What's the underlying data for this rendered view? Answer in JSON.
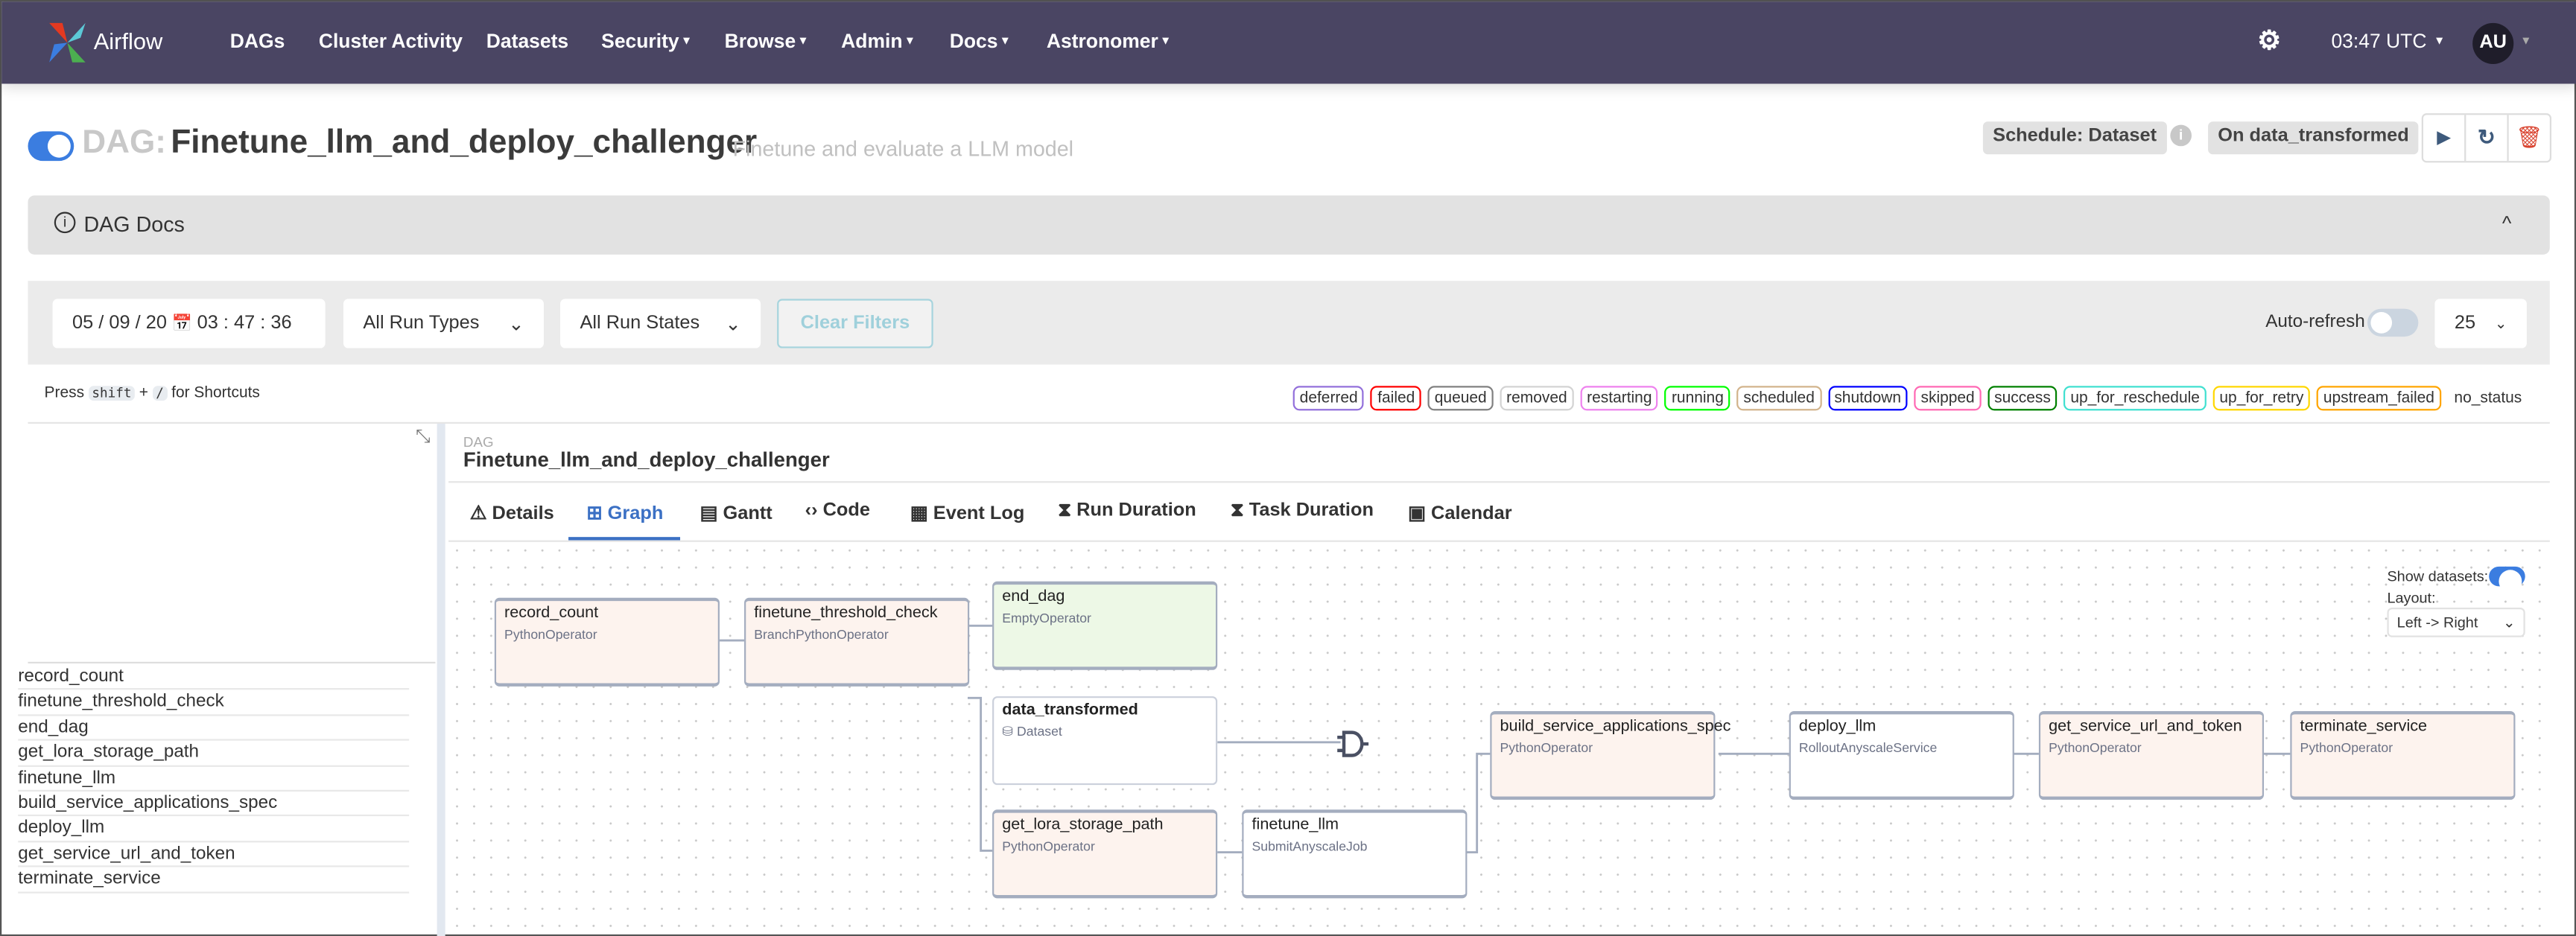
{
  "nav": {
    "brand": "Airflow",
    "items": [
      {
        "label": "DAGs"
      },
      {
        "label": "Cluster Activity"
      },
      {
        "label": "Datasets"
      },
      {
        "label": "Security",
        "dropdown": true
      },
      {
        "label": "Browse",
        "dropdown": true
      },
      {
        "label": "Admin",
        "dropdown": true
      },
      {
        "label": "Docs",
        "dropdown": true
      },
      {
        "label": "Astronomer",
        "dropdown": true
      }
    ],
    "time": "03:47 UTC",
    "avatar": "AU",
    "color": "#4a4563"
  },
  "header": {
    "dag_prefix": "DAG:",
    "dag_id": "Finetune_llm_and_deploy_challenger",
    "description": "Finetune and evaluate a LLM model",
    "paused": false,
    "schedule": "Schedule: Dataset",
    "trigger": "On data_transformed"
  },
  "docs": {
    "label": "DAG Docs"
  },
  "filters": {
    "date": "05 / 09 / 20",
    "time": "03 : 47 : 36",
    "run_type": "All Run Types",
    "run_state": "All Run States",
    "clear": "Clear Filters",
    "auto_refresh": "Auto-refresh",
    "auto_refresh_on": false,
    "page_size": "25"
  },
  "shortcuts": {
    "press": "Press",
    "key1": "shift",
    "plus": "+",
    "key2": "/",
    "suffix": "for Shortcuts"
  },
  "legend": [
    {
      "label": "deferred",
      "color": "#9370db"
    },
    {
      "label": "failed",
      "color": "#ff0000"
    },
    {
      "label": "queued",
      "color": "#808080"
    },
    {
      "label": "removed",
      "color": "#d3d3d3"
    },
    {
      "label": "restarting",
      "color": "#ee82ee"
    },
    {
      "label": "running",
      "color": "#00ff00"
    },
    {
      "label": "scheduled",
      "color": "#d2b48c"
    },
    {
      "label": "shutdown",
      "color": "#0000ff"
    },
    {
      "label": "skipped",
      "color": "#ff69b4"
    },
    {
      "label": "success",
      "color": "#008000"
    },
    {
      "label": "up_for_reschedule",
      "color": "#40e0d0"
    },
    {
      "label": "up_for_retry",
      "color": "#ffd700"
    },
    {
      "label": "upstream_failed",
      "color": "#ffa500"
    },
    {
      "label": "no_status",
      "color": ""
    }
  ],
  "tasks": [
    "record_count",
    "finetune_threshold_check",
    "end_dag",
    "get_lora_storage_path",
    "finetune_llm",
    "build_service_applications_spec",
    "deploy_llm",
    "get_service_url_and_token",
    "terminate_service"
  ],
  "details": {
    "kind": "DAG",
    "dag_id": "Finetune_llm_and_deploy_challenger"
  },
  "tabs": [
    {
      "label": "Details",
      "icon": "warning-icon"
    },
    {
      "label": "Graph",
      "icon": "graph-icon",
      "active": true
    },
    {
      "label": "Gantt",
      "icon": "gantt-icon"
    },
    {
      "label": "Code",
      "icon": "code-icon"
    },
    {
      "label": "Event Log",
      "icon": "log-icon"
    },
    {
      "label": "Run Duration",
      "icon": "hourglass-icon"
    },
    {
      "label": "Task Duration",
      "icon": "hourglass-icon"
    },
    {
      "label": "Calendar",
      "icon": "calendar-icon"
    }
  ],
  "graph": {
    "show_datasets": "Show datasets:",
    "show_datasets_on": true,
    "layout_label": "Layout:",
    "layout": "Left -> Right",
    "nodes": [
      {
        "name": "record_count",
        "op": "PythonOperator"
      },
      {
        "name": "finetune_threshold_check",
        "op": "BranchPythonOperator"
      },
      {
        "name": "end_dag",
        "op": "EmptyOperator"
      },
      {
        "name": "data_transformed",
        "op": "Dataset"
      },
      {
        "name": "get_lora_storage_path",
        "op": "PythonOperator"
      },
      {
        "name": "finetune_llm",
        "op": "SubmitAnyscaleJob"
      },
      {
        "name": "build_service_applications_spec",
        "op": "PythonOperator"
      },
      {
        "name": "deploy_llm",
        "op": "RolloutAnyscaleService"
      },
      {
        "name": "get_service_url_and_token",
        "op": "PythonOperator"
      },
      {
        "name": "terminate_service",
        "op": "PythonOperator"
      }
    ]
  }
}
